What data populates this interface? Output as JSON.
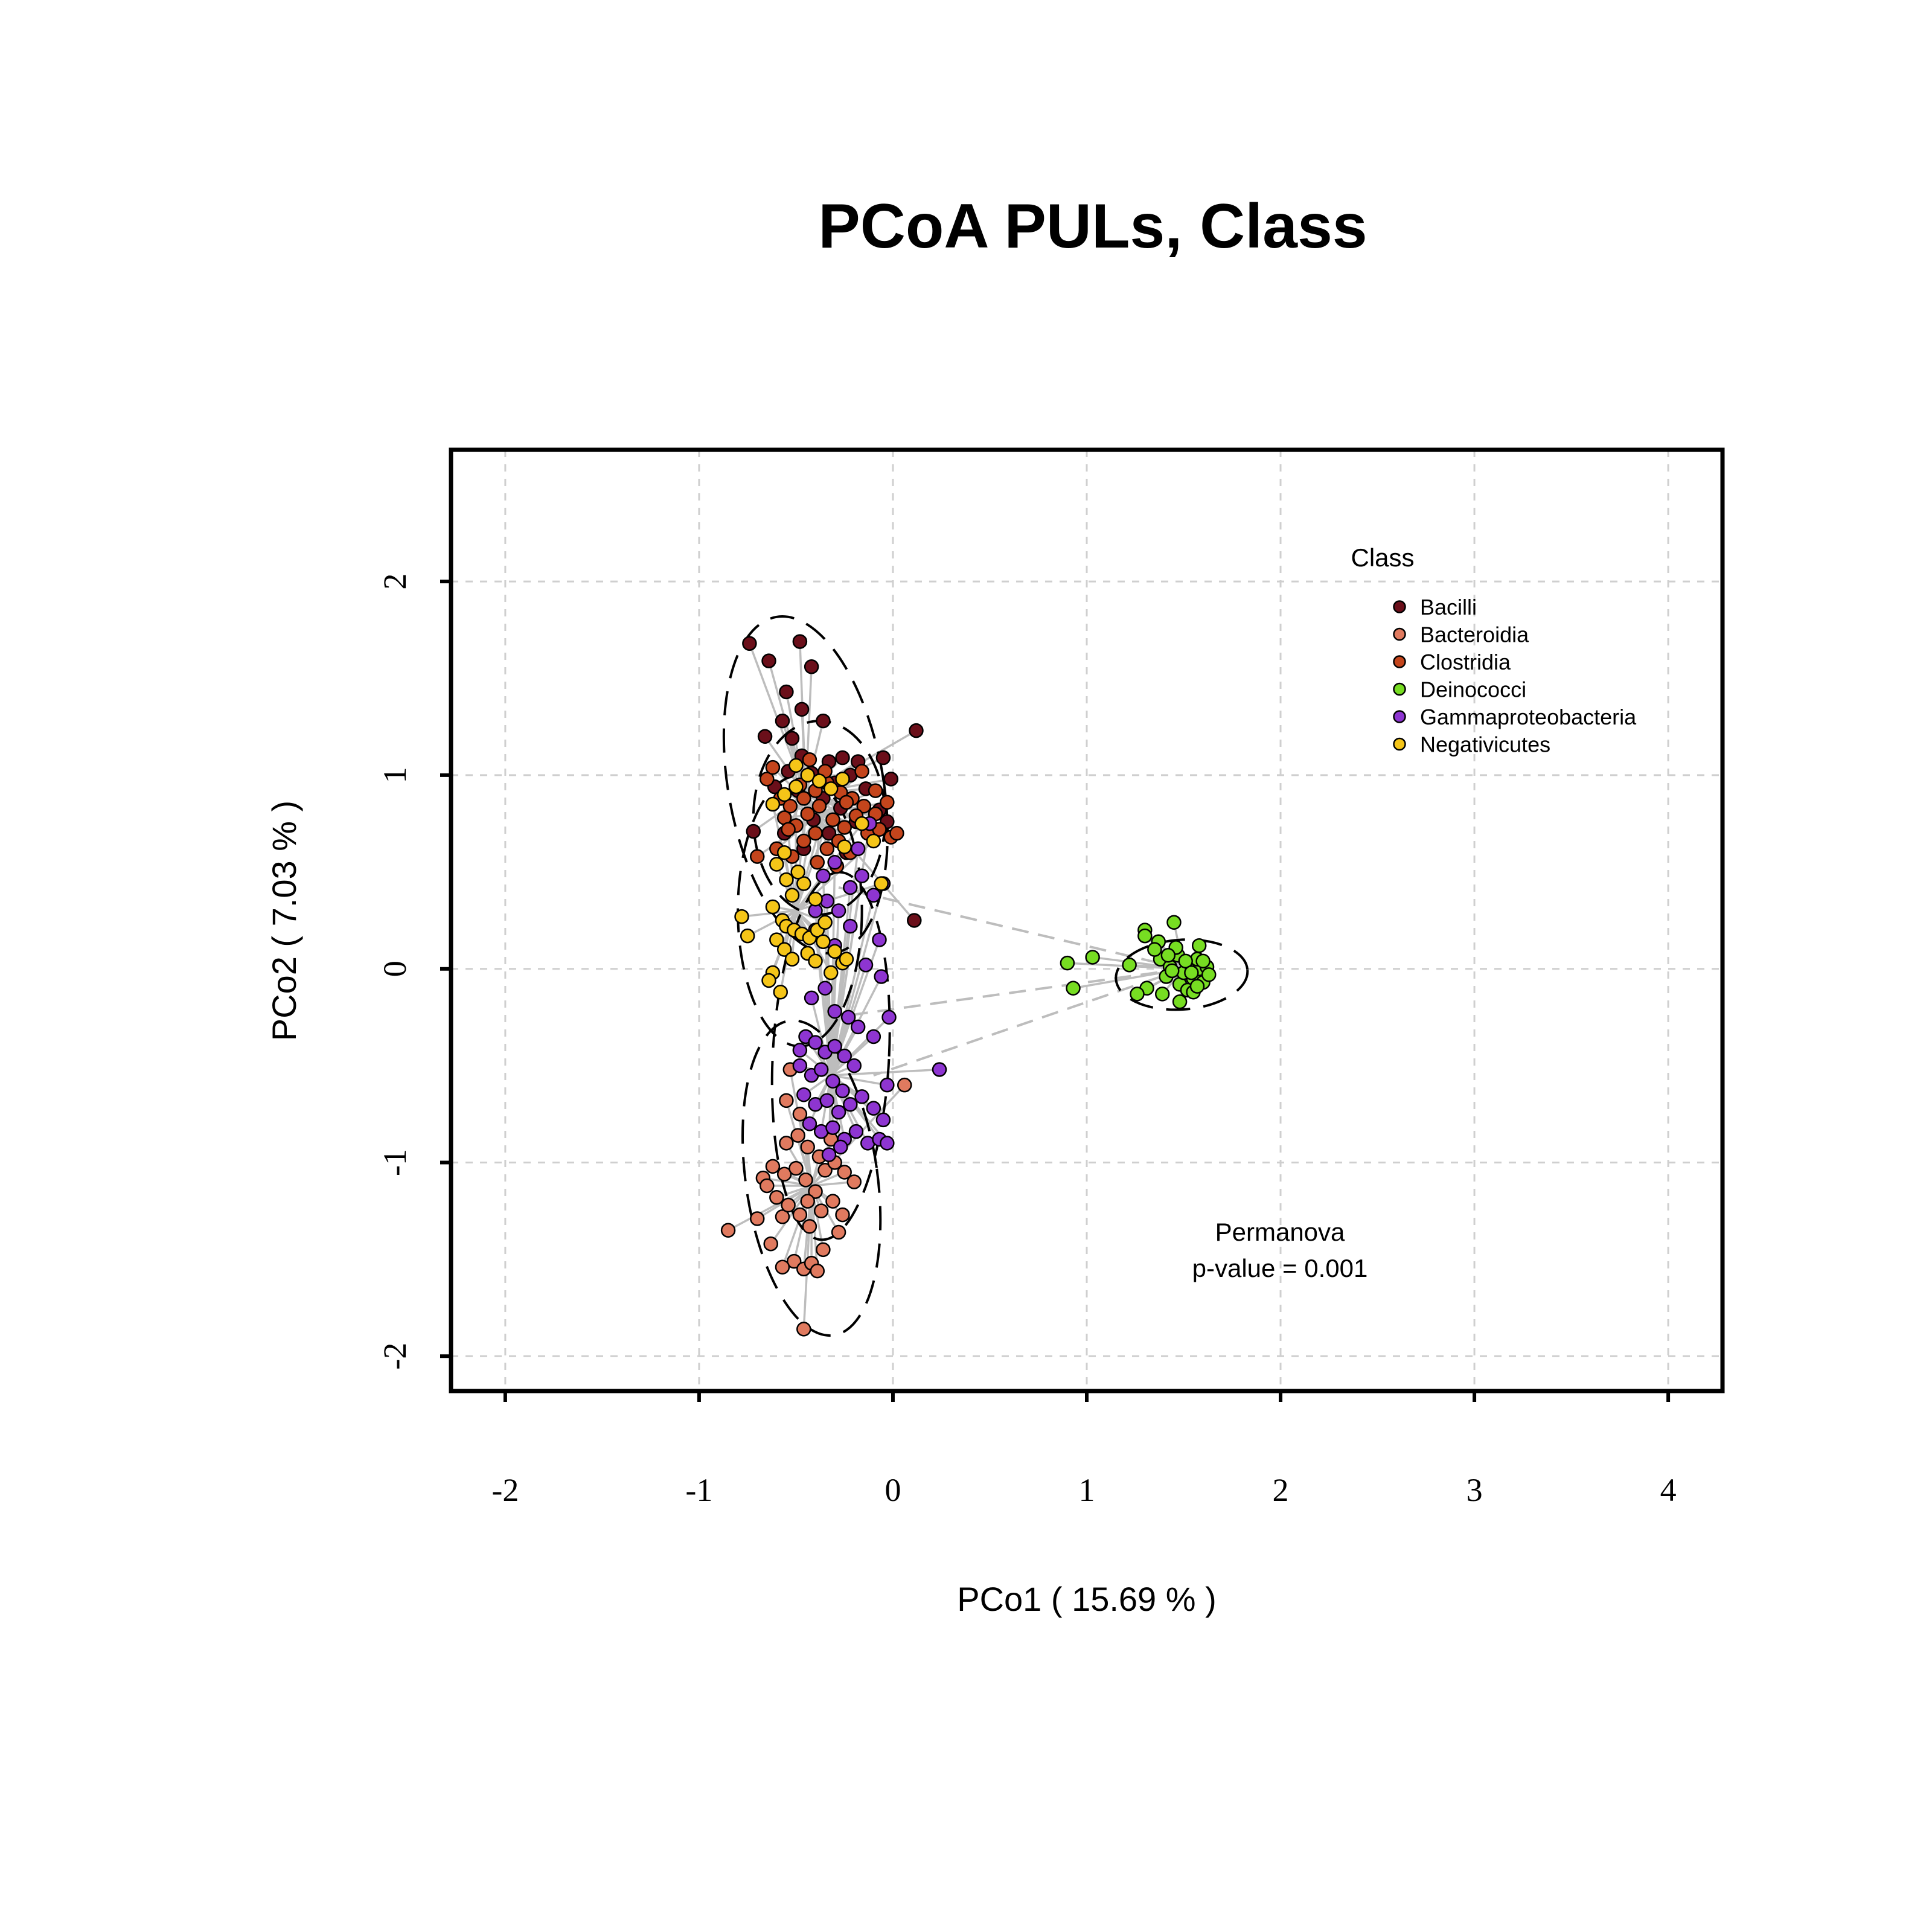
{
  "chart_data": {
    "type": "scatter",
    "title": "PCoA PULs, Class",
    "xlabel": "PCo1 ( 15.69 % )",
    "ylabel": "PCo2 ( 7.03 % )",
    "xlim": [
      -2.28,
      4.28
    ],
    "ylim": [
      -2.18,
      2.68
    ],
    "x_ticks": [
      -2,
      -1,
      0,
      1,
      2,
      3,
      4
    ],
    "y_ticks": [
      -2,
      -1,
      0,
      1,
      2
    ],
    "x_tick_labels": [
      "-2",
      "-1",
      "0",
      "1",
      "2",
      "3",
      "4"
    ],
    "y_tick_labels": [
      "-2",
      "-1",
      "0",
      "1",
      "2"
    ],
    "grid": true,
    "legend": {
      "title": "Class",
      "placement": "top-right",
      "entries": [
        "Bacilli",
        "Bacteroidia",
        "Clostridia",
        "Deinococci",
        "Gammaproteobacteria",
        "Negativicutes"
      ]
    },
    "annotation": {
      "line1": "Permanova",
      "line2": "p-value = 0.001"
    },
    "series": [
      {
        "name": "Bacilli",
        "color": "#6b0f1a",
        "centroid": [
          -0.45,
          0.9
        ],
        "ellipse": {
          "cx": -0.45,
          "cy": 0.95,
          "rx": 0.4,
          "ry": 0.88,
          "angle": -10
        },
        "points": [
          [
            -0.74,
            1.68
          ],
          [
            -0.48,
            1.69
          ],
          [
            -0.64,
            1.59
          ],
          [
            -0.42,
            1.56
          ],
          [
            -0.55,
            1.43
          ],
          [
            -0.47,
            1.34
          ],
          [
            -0.57,
            1.28
          ],
          [
            -0.36,
            1.28
          ],
          [
            -0.66,
            1.2
          ],
          [
            -0.52,
            1.19
          ],
          [
            0.12,
            1.23
          ],
          [
            -0.47,
            1.1
          ],
          [
            -0.33,
            1.07
          ],
          [
            -0.26,
            1.09
          ],
          [
            -0.18,
            1.07
          ],
          [
            -0.05,
            1.09
          ],
          [
            -0.54,
            1.02
          ],
          [
            -0.42,
            1.01
          ],
          [
            -0.3,
            0.96
          ],
          [
            -0.22,
            1.0
          ],
          [
            -0.61,
            0.94
          ],
          [
            -0.49,
            0.92
          ],
          [
            -0.36,
            0.88
          ],
          [
            -0.14,
            0.93
          ],
          [
            -0.01,
            0.98
          ],
          [
            -0.27,
            0.83
          ],
          [
            -0.07,
            0.82
          ],
          [
            -0.41,
            0.77
          ],
          [
            -0.19,
            0.76
          ],
          [
            -0.72,
            0.71
          ],
          [
            -0.56,
            0.7
          ],
          [
            -0.33,
            0.7
          ],
          [
            -0.03,
            0.76
          ],
          [
            -0.46,
            0.62
          ],
          [
            -0.24,
            0.6
          ],
          [
            0.11,
            0.25
          ]
        ]
      },
      {
        "name": "Bacteroidia",
        "color": "#e07a5f",
        "centroid": [
          -0.42,
          -1.12
        ],
        "ellipse": {
          "cx": -0.42,
          "cy": -1.08,
          "rx": 0.34,
          "ry": 0.82,
          "angle": -8
        },
        "points": [
          [
            -0.85,
            -1.35
          ],
          [
            -0.7,
            -1.29
          ],
          [
            -0.63,
            -1.42
          ],
          [
            -0.57,
            -1.28
          ],
          [
            -0.51,
            -1.51
          ],
          [
            -0.46,
            -1.55
          ],
          [
            -0.42,
            -1.52
          ],
          [
            -0.39,
            -1.56
          ],
          [
            -0.46,
            -1.86
          ],
          [
            -0.67,
            -1.08
          ],
          [
            -0.62,
            -1.02
          ],
          [
            -0.56,
            -1.06
          ],
          [
            -0.5,
            -1.03
          ],
          [
            -0.45,
            -1.09
          ],
          [
            -0.4,
            -1.15
          ],
          [
            -0.35,
            -1.04
          ],
          [
            -0.3,
            -1.0
          ],
          [
            -0.25,
            -1.05
          ],
          [
            -0.2,
            -1.1
          ],
          [
            -0.54,
            -1.22
          ],
          [
            -0.48,
            -1.27
          ],
          [
            -0.43,
            -1.33
          ],
          [
            -0.37,
            -1.25
          ],
          [
            -0.31,
            -1.2
          ],
          [
            -0.26,
            -1.27
          ],
          [
            -0.6,
            -1.18
          ],
          [
            -0.55,
            -0.9
          ],
          [
            -0.49,
            -0.86
          ],
          [
            -0.44,
            -0.92
          ],
          [
            -0.38,
            -0.97
          ],
          [
            -0.32,
            -0.88
          ],
          [
            -0.53,
            -0.52
          ],
          [
            -0.55,
            -0.68
          ],
          [
            -0.48,
            -0.75
          ],
          [
            0.06,
            -0.6
          ],
          [
            -0.65,
            -1.12
          ],
          [
            -0.28,
            -1.36
          ],
          [
            -0.36,
            -1.45
          ],
          [
            -0.57,
            -1.54
          ],
          [
            -0.44,
            -1.2
          ]
        ]
      },
      {
        "name": "Clostridia",
        "color": "#c4451c",
        "centroid": [
          -0.38,
          0.8
        ],
        "ellipse": {
          "cx": -0.38,
          "cy": 0.78,
          "rx": 0.34,
          "ry": 0.5,
          "angle": 0
        },
        "points": [
          [
            -0.65,
            0.98
          ],
          [
            -0.58,
            0.88
          ],
          [
            -0.53,
            0.84
          ],
          [
            -0.46,
            0.88
          ],
          [
            -0.4,
            0.92
          ],
          [
            -0.34,
            0.96
          ],
          [
            -0.27,
            0.91
          ],
          [
            -0.21,
            0.88
          ],
          [
            -0.15,
            0.84
          ],
          [
            -0.09,
            0.8
          ],
          [
            -0.03,
            0.86
          ],
          [
            -0.56,
            0.78
          ],
          [
            -0.5,
            0.74
          ],
          [
            -0.44,
            0.8
          ],
          [
            -0.38,
            0.84
          ],
          [
            -0.31,
            0.77
          ],
          [
            -0.25,
            0.73
          ],
          [
            -0.19,
            0.79
          ],
          [
            -0.13,
            0.7
          ],
          [
            -0.07,
            0.72
          ],
          [
            -0.01,
            0.68
          ],
          [
            -0.46,
            0.66
          ],
          [
            -0.4,
            0.7
          ],
          [
            -0.34,
            0.62
          ],
          [
            -0.28,
            0.66
          ],
          [
            -0.22,
            0.6
          ],
          [
            -0.6,
            0.62
          ],
          [
            -0.52,
            0.58
          ],
          [
            -0.39,
            0.55
          ],
          [
            -0.7,
            0.58
          ],
          [
            -0.43,
            1.08
          ],
          [
            -0.35,
            1.02
          ],
          [
            -0.62,
            1.04
          ],
          [
            -0.16,
            1.02
          ],
          [
            0.02,
            0.7
          ],
          [
            -0.29,
            0.53
          ],
          [
            -0.54,
            0.72
          ],
          [
            -0.24,
            0.86
          ],
          [
            -0.09,
            0.92
          ],
          [
            -0.48,
            0.95
          ]
        ]
      },
      {
        "name": "Deinococci",
        "color": "#77dd22",
        "centroid": [
          1.5,
          0.0
        ],
        "ellipse": {
          "cx": 1.49,
          "cy": -0.03,
          "rx": 0.34,
          "ry": 0.18,
          "angle": -4
        },
        "points": [
          [
            0.9,
            0.03
          ],
          [
            1.03,
            0.06
          ],
          [
            0.93,
            -0.1
          ],
          [
            1.22,
            0.02
          ],
          [
            1.31,
            -0.1
          ],
          [
            1.26,
            -0.13
          ],
          [
            1.3,
            0.2
          ],
          [
            1.3,
            0.17
          ],
          [
            1.37,
            0.14
          ],
          [
            1.45,
            0.24
          ],
          [
            1.38,
            0.05
          ],
          [
            1.43,
            0.01
          ],
          [
            1.47,
            0.07
          ],
          [
            1.41,
            -0.04
          ],
          [
            1.48,
            -0.08
          ],
          [
            1.5,
            -0.02
          ],
          [
            1.53,
            0.03
          ],
          [
            1.55,
            -0.05
          ],
          [
            1.58,
            0.0
          ],
          [
            1.6,
            -0.07
          ],
          [
            1.62,
            0.01
          ],
          [
            1.52,
            -0.11
          ],
          [
            1.46,
            0.11
          ],
          [
            1.57,
            0.05
          ],
          [
            1.63,
            -0.03
          ],
          [
            1.39,
            -0.13
          ],
          [
            1.48,
            -0.17
          ],
          [
            1.55,
            -0.12
          ],
          [
            1.58,
            0.12
          ],
          [
            1.35,
            0.1
          ],
          [
            1.44,
            -0.01
          ],
          [
            1.51,
            0.04
          ],
          [
            1.57,
            -0.09
          ],
          [
            1.42,
            0.07
          ],
          [
            1.6,
            0.04
          ],
          [
            1.54,
            -0.02
          ]
        ]
      },
      {
        "name": "Gammaproteobacteria",
        "color": "#8e35d1",
        "centroid": [
          -0.32,
          -0.55
        ],
        "ellipse": {
          "cx": -0.32,
          "cy": -0.45,
          "rx": 0.3,
          "ry": 0.95,
          "angle": 3
        },
        "points": [
          [
            -0.45,
            -0.35
          ],
          [
            -0.4,
            -0.38
          ],
          [
            -0.35,
            -0.43
          ],
          [
            -0.3,
            -0.4
          ],
          [
            -0.25,
            -0.45
          ],
          [
            -0.2,
            -0.5
          ],
          [
            -0.48,
            -0.5
          ],
          [
            -0.42,
            -0.55
          ],
          [
            -0.37,
            -0.52
          ],
          [
            -0.31,
            -0.58
          ],
          [
            -0.26,
            -0.63
          ],
          [
            -0.46,
            -0.65
          ],
          [
            -0.4,
            -0.7
          ],
          [
            -0.34,
            -0.68
          ],
          [
            -0.28,
            -0.74
          ],
          [
            -0.22,
            -0.7
          ],
          [
            -0.16,
            -0.66
          ],
          [
            -0.1,
            -0.72
          ],
          [
            -0.43,
            -0.8
          ],
          [
            -0.37,
            -0.84
          ],
          [
            -0.31,
            -0.82
          ],
          [
            -0.25,
            -0.88
          ],
          [
            -0.19,
            -0.84
          ],
          [
            -0.13,
            -0.9
          ],
          [
            -0.07,
            -0.88
          ],
          [
            -0.03,
            -0.9
          ],
          [
            -0.33,
            -0.96
          ],
          [
            -0.27,
            -0.92
          ],
          [
            -0.4,
            0.3
          ],
          [
            -0.34,
            0.35
          ],
          [
            -0.28,
            0.3
          ],
          [
            -0.22,
            0.42
          ],
          [
            -0.16,
            0.48
          ],
          [
            -0.1,
            0.38
          ],
          [
            -0.05,
            0.44
          ],
          [
            -0.36,
            0.48
          ],
          [
            -0.3,
            0.55
          ],
          [
            -0.4,
            0.2
          ],
          [
            -0.22,
            0.22
          ],
          [
            -0.14,
            0.02
          ],
          [
            -0.06,
            -0.04
          ],
          [
            -0.42,
            -0.15
          ],
          [
            -0.35,
            -0.1
          ],
          [
            -0.3,
            -0.22
          ],
          [
            -0.23,
            -0.25
          ],
          [
            -0.18,
            -0.3
          ],
          [
            -0.1,
            -0.35
          ],
          [
            0.24,
            -0.52
          ],
          [
            -0.03,
            -0.6
          ],
          [
            -0.05,
            -0.78
          ],
          [
            -0.48,
            -0.42
          ],
          [
            -0.3,
            0.12
          ],
          [
            -0.18,
            0.62
          ],
          [
            -0.12,
            0.75
          ],
          [
            -0.07,
            0.15
          ],
          [
            -0.02,
            -0.25
          ]
        ]
      },
      {
        "name": "Negativicutes",
        "color": "#f5c518",
        "centroid": [
          -0.5,
          0.3
        ],
        "ellipse": {
          "cx": -0.48,
          "cy": 0.3,
          "rx": 0.32,
          "ry": 0.7,
          "angle": 0
        },
        "points": [
          [
            -0.78,
            0.27
          ],
          [
            -0.75,
            0.17
          ],
          [
            -0.62,
            0.32
          ],
          [
            -0.57,
            0.25
          ],
          [
            -0.55,
            0.22
          ],
          [
            -0.51,
            0.2
          ],
          [
            -0.47,
            0.18
          ],
          [
            -0.43,
            0.16
          ],
          [
            -0.39,
            0.2
          ],
          [
            -0.36,
            0.14
          ],
          [
            -0.6,
            0.15
          ],
          [
            -0.56,
            0.1
          ],
          [
            -0.52,
            0.05
          ],
          [
            -0.44,
            0.08
          ],
          [
            -0.4,
            0.04
          ],
          [
            -0.3,
            0.09
          ],
          [
            -0.26,
            0.03
          ],
          [
            -0.32,
            -0.02
          ],
          [
            -0.24,
            0.05
          ],
          [
            -0.62,
            -0.02
          ],
          [
            -0.64,
            -0.06
          ],
          [
            -0.58,
            -0.12
          ],
          [
            -0.52,
            0.38
          ],
          [
            -0.46,
            0.44
          ],
          [
            -0.4,
            0.36
          ],
          [
            -0.55,
            0.46
          ],
          [
            -0.49,
            0.5
          ],
          [
            -0.6,
            0.54
          ],
          [
            -0.56,
            0.6
          ],
          [
            -0.62,
            0.85
          ],
          [
            -0.56,
            0.9
          ],
          [
            -0.5,
            0.94
          ],
          [
            -0.44,
            1.0
          ],
          [
            -0.38,
            0.97
          ],
          [
            -0.32,
            0.93
          ],
          [
            -0.26,
            0.98
          ],
          [
            -0.5,
            1.05
          ],
          [
            -0.16,
            0.75
          ],
          [
            -0.1,
            0.66
          ],
          [
            -0.25,
            0.63
          ],
          [
            -0.06,
            0.44
          ],
          [
            -0.35,
            0.24
          ]
        ]
      }
    ]
  }
}
